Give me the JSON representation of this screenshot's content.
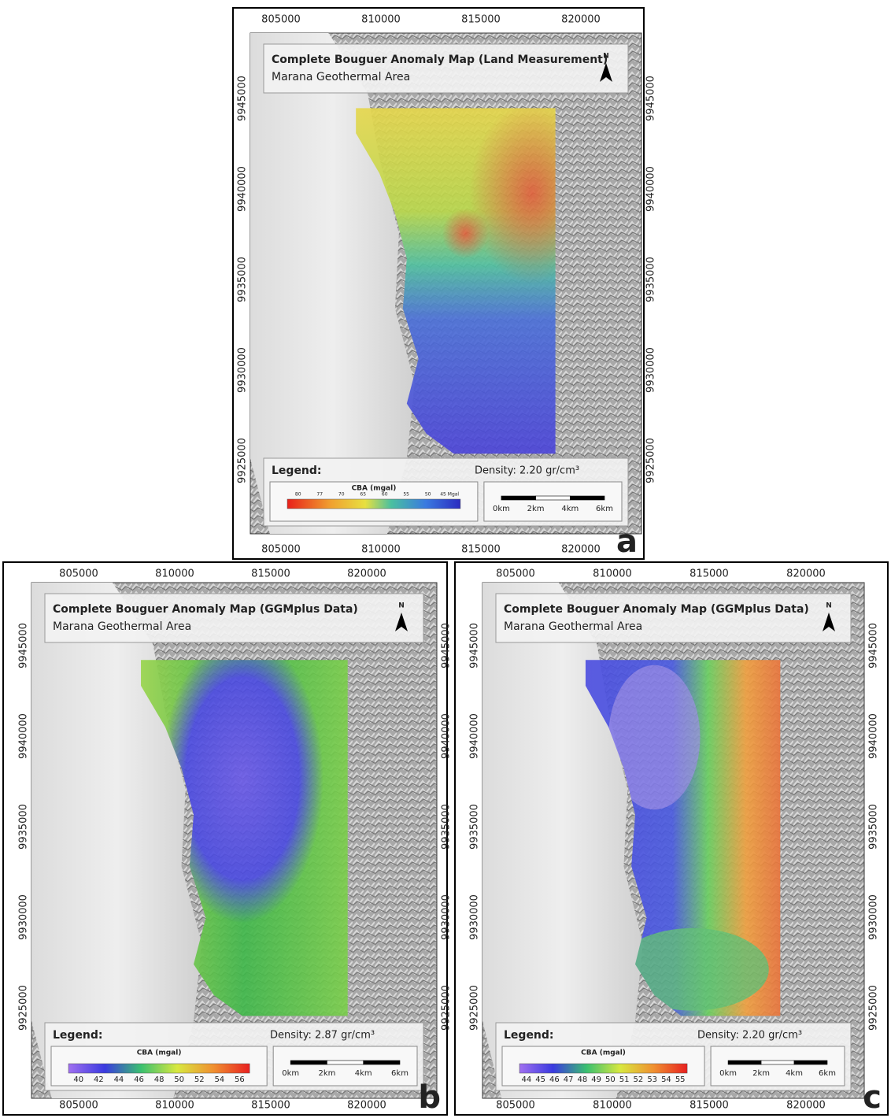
{
  "panels": [
    {
      "label": "a",
      "title": "Complete Bouguer Anomaly Map (Land Measurement)",
      "subtitle": "Marana Geothermal Area",
      "north_label": "N",
      "x_ticks": [
        805000,
        810000,
        815000,
        820000
      ],
      "y_ticks": [
        9945000,
        9940000,
        9935000,
        9930000,
        9925000
      ],
      "legend_title": "Legend:",
      "colorbar_title": "CBA (mgal)",
      "colorbar_ticks": [
        "80",
        "77",
        "70",
        "65",
        "60",
        "55",
        "50",
        "45 Mgal"
      ],
      "density": "Density: 2.20 gr/cm³",
      "scale_labels": [
        "0km",
        "2km",
        "4km",
        "6km"
      ]
    },
    {
      "label": "b",
      "title": "Complete Bouguer Anomaly Map (GGMplus Data)",
      "subtitle": "Marana Geothermal Area",
      "north_label": "N",
      "x_ticks": [
        805000,
        810000,
        815000,
        820000
      ],
      "y_ticks": [
        9945000,
        9940000,
        9935000,
        9930000,
        9925000
      ],
      "legend_title": "Legend:",
      "colorbar_title": "CBA (mgal)",
      "colorbar_ticks": [
        40,
        42,
        44,
        46,
        48,
        50,
        52,
        54,
        56
      ],
      "density": "Density: 2.87 gr/cm³",
      "scale_labels": [
        "0km",
        "2km",
        "4km",
        "6km"
      ]
    },
    {
      "label": "c",
      "title": "Complete Bouguer Anomaly Map (GGMplus Data)",
      "subtitle": "Marana Geothermal Area",
      "north_label": "N",
      "x_ticks": [
        805000,
        810000,
        815000,
        820000
      ],
      "y_ticks": [
        9945000,
        9940000,
        9935000,
        9930000,
        9925000
      ],
      "legend_title": "Legend:",
      "colorbar_title": "CBA (mgal)",
      "colorbar_ticks": [
        44,
        45,
        46,
        47,
        48,
        49,
        50,
        51,
        52,
        53,
        54,
        55
      ],
      "density": "Density: 2.20 gr/cm³",
      "scale_labels": [
        "0km",
        "2km",
        "4km",
        "6km"
      ]
    }
  ]
}
